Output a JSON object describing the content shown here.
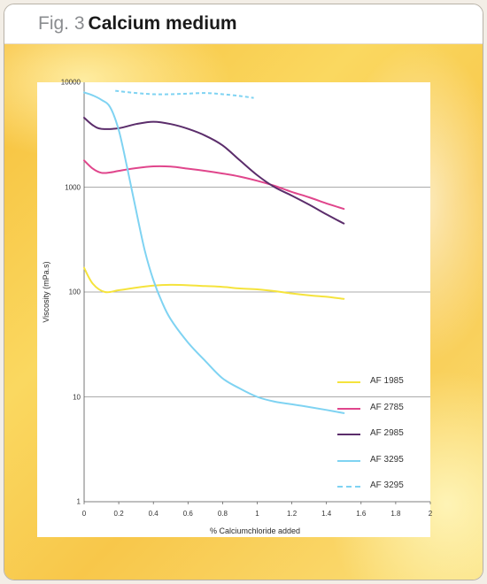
{
  "figure": {
    "number": "Fig. 3",
    "title": "Calcium medium"
  },
  "chart_data": {
    "type": "line",
    "xlabel": "% Calciumchloride added",
    "ylabel": "Viscosity (mPa.s)",
    "xlim": [
      0,
      2
    ],
    "ylim": [
      1,
      10000
    ],
    "yscale": "log",
    "x_ticks": [
      "0",
      "0.2",
      "0.4",
      "0.6",
      "0.8",
      "1",
      "1.2",
      "1.4",
      "1.6",
      "1.8",
      "2"
    ],
    "y_ticks": [
      "1",
      "10",
      "100",
      "1000",
      "10000"
    ],
    "grid": "horizontal at decades",
    "legend_position": "bottom-right",
    "series": [
      {
        "name": "AF 1985",
        "color": "#f5e33c",
        "dash": false,
        "points": [
          [
            0,
            170
          ],
          [
            0.05,
            120
          ],
          [
            0.12,
            100
          ],
          [
            0.2,
            104
          ],
          [
            0.3,
            110
          ],
          [
            0.4,
            115
          ],
          [
            0.5,
            117
          ],
          [
            0.6,
            116
          ],
          [
            0.7,
            114
          ],
          [
            0.8,
            112
          ],
          [
            0.9,
            108
          ],
          [
            1.0,
            106
          ],
          [
            1.1,
            102
          ],
          [
            1.2,
            97
          ],
          [
            1.3,
            93
          ],
          [
            1.4,
            90
          ],
          [
            1.5,
            86
          ]
        ]
      },
      {
        "name": "AF 2785",
        "color": "#e0468c",
        "dash": false,
        "points": [
          [
            0,
            1800
          ],
          [
            0.05,
            1500
          ],
          [
            0.1,
            1370
          ],
          [
            0.15,
            1380
          ],
          [
            0.2,
            1430
          ],
          [
            0.3,
            1520
          ],
          [
            0.4,
            1580
          ],
          [
            0.5,
            1570
          ],
          [
            0.6,
            1500
          ],
          [
            0.7,
            1430
          ],
          [
            0.8,
            1350
          ],
          [
            0.9,
            1260
          ],
          [
            1.0,
            1150
          ],
          [
            1.1,
            1030
          ],
          [
            1.2,
            900
          ],
          [
            1.3,
            800
          ],
          [
            1.4,
            700
          ],
          [
            1.5,
            620
          ]
        ]
      },
      {
        "name": "AF 2985",
        "color": "#5b2d6b",
        "dash": false,
        "points": [
          [
            0,
            4600
          ],
          [
            0.05,
            3900
          ],
          [
            0.1,
            3600
          ],
          [
            0.2,
            3650
          ],
          [
            0.3,
            4000
          ],
          [
            0.4,
            4200
          ],
          [
            0.5,
            4000
          ],
          [
            0.6,
            3600
          ],
          [
            0.7,
            3100
          ],
          [
            0.8,
            2500
          ],
          [
            0.9,
            1800
          ],
          [
            1.0,
            1300
          ],
          [
            1.1,
            1000
          ],
          [
            1.2,
            830
          ],
          [
            1.3,
            680
          ],
          [
            1.4,
            550
          ],
          [
            1.5,
            450
          ]
        ]
      },
      {
        "name": "AF 3295",
        "color": "#7fd3f2",
        "dash": false,
        "points": [
          [
            0,
            8000
          ],
          [
            0.05,
            7500
          ],
          [
            0.1,
            6800
          ],
          [
            0.15,
            5800
          ],
          [
            0.2,
            3500
          ],
          [
            0.25,
            1500
          ],
          [
            0.3,
            600
          ],
          [
            0.35,
            250
          ],
          [
            0.4,
            130
          ],
          [
            0.45,
            80
          ],
          [
            0.5,
            55
          ],
          [
            0.6,
            33
          ],
          [
            0.7,
            22
          ],
          [
            0.8,
            15
          ],
          [
            0.9,
            12
          ],
          [
            1.0,
            10
          ],
          [
            1.1,
            9
          ],
          [
            1.2,
            8.5
          ],
          [
            1.3,
            8
          ],
          [
            1.4,
            7.5
          ],
          [
            1.5,
            7
          ]
        ]
      },
      {
        "name": "AF 3295",
        "color": "#7fd3f2",
        "dash": true,
        "points": [
          [
            0.18,
            8300
          ],
          [
            0.3,
            7900
          ],
          [
            0.4,
            7700
          ],
          [
            0.5,
            7700
          ],
          [
            0.6,
            7800
          ],
          [
            0.7,
            7900
          ],
          [
            0.8,
            7700
          ],
          [
            0.9,
            7400
          ],
          [
            0.98,
            7100
          ]
        ]
      }
    ]
  }
}
